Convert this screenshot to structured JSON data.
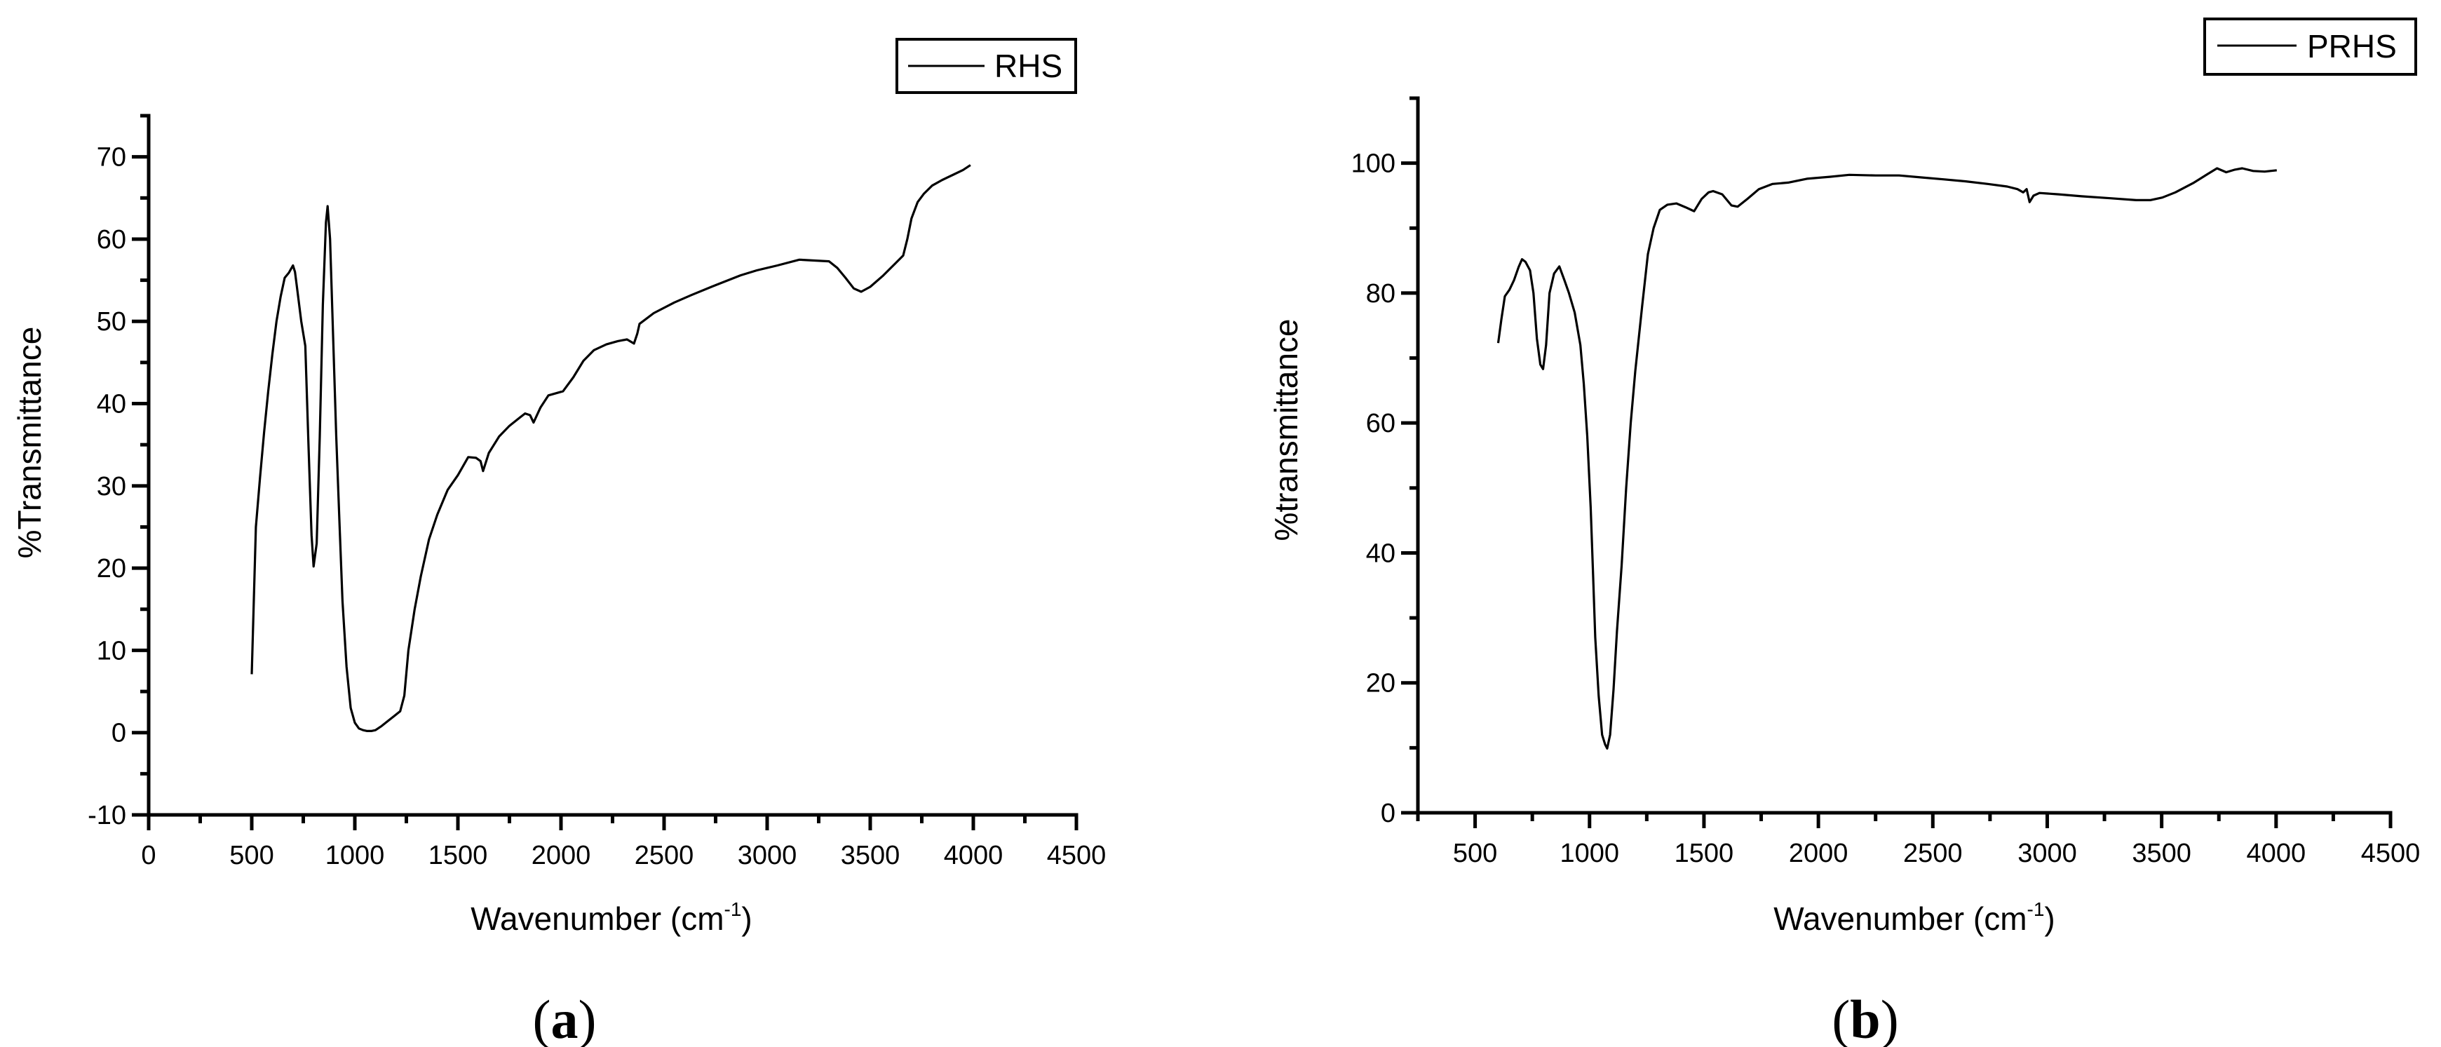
{
  "figure": {
    "panels": [
      {
        "id": "a",
        "caption_open": "(",
        "caption_letter": "a",
        "caption_close": ")",
        "legend_label": "RHS",
        "ylabel": "%Transmittance",
        "xlabel_main": "Wavenumber (cm",
        "xlabel_sup": "-1",
        "xlabel_close": ")"
      },
      {
        "id": "b",
        "caption_open": "(",
        "caption_letter": "b",
        "caption_close": ")",
        "legend_label": "PRHS",
        "ylabel": "%transmittance",
        "xlabel_main": "Wavenumber (cm",
        "xlabel_sup": "-1",
        "xlabel_close": ")"
      }
    ]
  },
  "chart_data": [
    {
      "type": "line",
      "title": "(a)",
      "xlabel": "Wavenumber (cm-1)",
      "ylabel": "%Transmittance",
      "xlim": [
        0,
        4500
      ],
      "ylim": [
        -10,
        75
      ],
      "xticks": [
        0,
        500,
        1000,
        1500,
        2000,
        2500,
        3000,
        3500,
        4000,
        4500
      ],
      "yticks": [
        -10,
        0,
        10,
        20,
        30,
        40,
        50,
        60,
        70
      ],
      "grid": false,
      "legend_position": "top-right",
      "series": [
        {
          "name": "RHS",
          "color": "#000000",
          "x": [
            500,
            520,
            540,
            560,
            580,
            600,
            620,
            640,
            660,
            680,
            700,
            710,
            720,
            740,
            760,
            775,
            790,
            800,
            815,
            830,
            845,
            860,
            868,
            880,
            895,
            910,
            925,
            940,
            960,
            980,
            1000,
            1020,
            1040,
            1060,
            1080,
            1100,
            1130,
            1160,
            1190,
            1220,
            1240,
            1260,
            1290,
            1320,
            1360,
            1400,
            1450,
            1500,
            1550,
            1588,
            1610,
            1622,
            1650,
            1700,
            1750,
            1800,
            1826,
            1850,
            1867,
            1900,
            1939,
            2010,
            2060,
            2109,
            2160,
            2220,
            2276,
            2320,
            2354,
            2370,
            2381,
            2450,
            2550,
            2633,
            2750,
            2871,
            2950,
            3050,
            3156,
            3220,
            3300,
            3340,
            3380,
            3420,
            3456,
            3500,
            3560,
            3620,
            3660,
            3680,
            3700,
            3730,
            3760,
            3800,
            3850,
            3900,
            3950,
            3986
          ],
          "values": [
            7.1,
            25,
            31,
            36.5,
            41.5,
            46,
            50,
            53,
            55.3,
            55.9,
            56.8,
            56,
            54,
            50,
            47,
            35,
            24,
            20.2,
            23,
            36,
            52,
            62,
            64,
            60,
            48,
            36,
            26,
            16,
            8,
            3,
            1.2,
            0.5,
            0.3,
            0.2,
            0.2,
            0.3,
            0.8,
            1.4,
            2.0,
            2.6,
            4.5,
            10,
            15,
            19,
            23.5,
            26.5,
            29.5,
            31.3,
            33.5,
            33.4,
            33.0,
            31.8,
            34,
            36,
            37.3,
            38.3,
            38.8,
            38.6,
            37.7,
            39.5,
            41.0,
            41.5,
            43.2,
            45.2,
            46.5,
            47.2,
            47.6,
            47.8,
            47.3,
            48.5,
            49.7,
            51,
            52.3,
            53.2,
            54.4,
            55.6,
            56.2,
            56.8,
            57.5,
            57.4,
            57.3,
            56.5,
            55.3,
            54.0,
            53.6,
            54.2,
            55.5,
            57,
            58,
            60,
            62.5,
            64.5,
            65.5,
            66.5,
            67.2,
            67.8,
            68.4,
            69.0
          ]
        }
      ]
    },
    {
      "type": "line",
      "title": "(b)",
      "xlabel": "Wavenumber (cm-1)",
      "ylabel": "%transmittance",
      "xlim": [
        250,
        4500
      ],
      "ylim": [
        0,
        110
      ],
      "xticks": [
        500,
        1000,
        1500,
        2000,
        2500,
        3000,
        3500,
        4000,
        4500
      ],
      "yticks": [
        0,
        20,
        40,
        60,
        80,
        100
      ],
      "grid": false,
      "legend_position": "top-right",
      "series": [
        {
          "name": "PRHS",
          "color": "#000000",
          "x": [
            601,
            615,
            630,
            650,
            670,
            690,
            705,
            720,
            740,
            755,
            770,
            785,
            797,
            810,
            825,
            845,
            868,
            890,
            910,
            935,
            960,
            975,
            990,
            1005,
            1015,
            1025,
            1040,
            1055,
            1068,
            1077,
            1090,
            1105,
            1120,
            1140,
            1160,
            1180,
            1200,
            1230,
            1255,
            1280,
            1307,
            1340,
            1380,
            1420,
            1457,
            1490,
            1520,
            1540,
            1580,
            1620,
            1647,
            1690,
            1740,
            1800,
            1868,
            1950,
            2050,
            2135,
            2250,
            2353,
            2450,
            2550,
            2644,
            2740,
            2825,
            2870,
            2895,
            2910,
            2923,
            2940,
            2966,
            3050,
            3150,
            3276,
            3389,
            3450,
            3503,
            3560,
            3641,
            3700,
            3742,
            3782,
            3820,
            3852,
            3900,
            3950,
            4003
          ],
          "values": [
            72.3,
            76,
            79.5,
            80.5,
            82,
            84,
            85.2,
            84.8,
            83.5,
            80,
            73,
            69,
            68.3,
            72,
            80,
            83,
            84.1,
            82,
            80,
            77,
            72,
            66,
            58,
            47,
            37,
            27,
            18,
            12,
            10.5,
            9.9,
            12,
            19,
            28,
            38,
            50,
            60,
            68,
            78,
            86,
            90,
            92.8,
            93.6,
            93.8,
            93.2,
            92.6,
            94.5,
            95.5,
            95.7,
            95.2,
            93.5,
            93.3,
            94.5,
            96,
            96.8,
            97,
            97.6,
            97.9,
            98.2,
            98.1,
            98.1,
            97.8,
            97.5,
            97.2,
            96.8,
            96.4,
            96.0,
            95.5,
            96.0,
            94.0,
            95.0,
            95.4,
            95.2,
            94.9,
            94.6,
            94.3,
            94.3,
            94.7,
            95.5,
            97.0,
            98.3,
            99.2,
            98.6,
            99.0,
            99.2,
            98.8,
            98.7,
            98.9
          ]
        }
      ]
    }
  ]
}
